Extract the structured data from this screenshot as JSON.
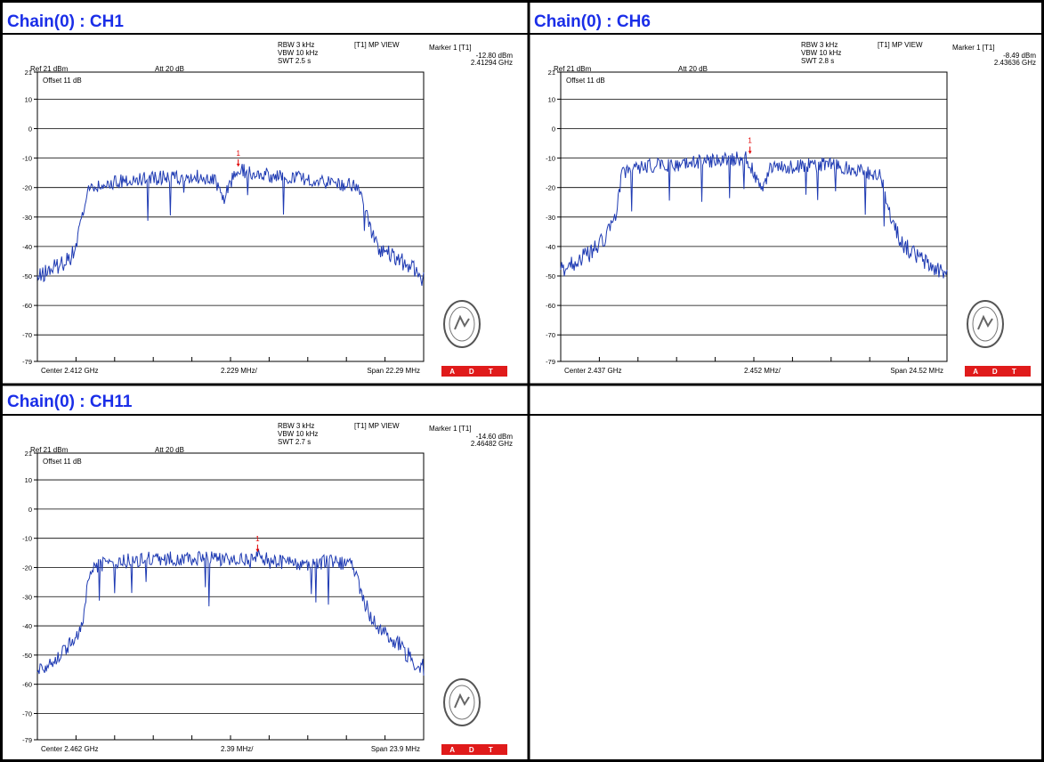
{
  "titles": [
    "Chain(0) : CH1",
    "Chain(0) : CH6",
    "Chain(0) : CH11"
  ],
  "chart_data": [
    {
      "type": "line",
      "title": "Chain(0) : CH1",
      "mode": "[T1] MP VIEW",
      "rbw": "RBW 3 kHz",
      "vbw": "VBW 10 kHz",
      "swt": "SWT 2.5 s",
      "ref": "Ref 21 dBm",
      "att": "Att 20 dB",
      "offset": "Offset 11 dB",
      "marker_label": "Marker 1 [T1]",
      "marker_level": "-12.80 dBm",
      "marker_freq": "2.41294 GHz",
      "marker_num": "1",
      "center": "Center 2.412 GHz",
      "per_div": "2.229 MHz/",
      "span": "Span 22.29 MHz",
      "ylim": [
        -79,
        21
      ],
      "ytick_labels": [
        "21",
        "10",
        "0",
        "-10",
        "-20",
        "-30",
        "-40",
        "-50",
        "-60",
        "-70",
        "-79"
      ],
      "ytick_values": [
        21,
        10,
        0,
        -10,
        -20,
        -30,
        -40,
        -50,
        -60,
        -70,
        -79
      ],
      "xlim": [
        0,
        10
      ],
      "grid": true,
      "marker_x": 5.2,
      "marker_y": -12.8,
      "series": [
        {
          "values": [
            [
              0,
              -51
            ],
            [
              0.3,
              -48
            ],
            [
              0.6,
              -46
            ],
            [
              0.9,
              -43
            ],
            [
              1.0,
              -40
            ],
            [
              1.1,
              -33
            ],
            [
              1.2,
              -27
            ],
            [
              1.3,
              -21
            ],
            [
              1.6,
              -20
            ],
            [
              2.0,
              -18
            ],
            [
              3.0,
              -17
            ],
            [
              4.0,
              -16
            ],
            [
              4.6,
              -17
            ],
            [
              4.8,
              -25
            ],
            [
              5.0,
              -18
            ],
            [
              5.2,
              -14
            ],
            [
              6.0,
              -16
            ],
            [
              7.0,
              -17
            ],
            [
              8.0,
              -19
            ],
            [
              8.3,
              -20
            ],
            [
              8.4,
              -22
            ],
            [
              8.6,
              -33
            ],
            [
              8.8,
              -40
            ],
            [
              9.0,
              -42
            ],
            [
              9.4,
              -45
            ],
            [
              9.7,
              -47
            ],
            [
              10.0,
              -51
            ]
          ]
        }
      ],
      "footer": "A D T",
      "accent": "#1f3bb3"
    },
    {
      "type": "line",
      "title": "Chain(0) : CH6",
      "mode": "[T1] MP VIEW",
      "rbw": "RBW 3 kHz",
      "vbw": "VBW 10 kHz",
      "swt": "SWT 2.8 s",
      "ref": "Ref 21 dBm",
      "att": "Att 20 dB",
      "offset": "Offset 11 dB",
      "marker_label": "Marker 1 [T1]",
      "marker_level": "-8.49 dBm",
      "marker_freq": "2.43636 GHz",
      "marker_num": "1",
      "center": "Center 2.437 GHz",
      "per_div": "2.452 MHz/",
      "span": "Span 24.52 MHz",
      "ylim": [
        -79,
        21
      ],
      "ytick_labels": [
        "21",
        "10",
        "0",
        "-10",
        "-20",
        "-30",
        "-40",
        "-50",
        "-60",
        "-70",
        "-79"
      ],
      "ytick_values": [
        21,
        10,
        0,
        -10,
        -20,
        -30,
        -40,
        -50,
        -60,
        -70,
        -79
      ],
      "xlim": [
        0,
        10
      ],
      "grid": true,
      "marker_x": 4.9,
      "marker_y": -8.49,
      "series": [
        {
          "values": [
            [
              0,
              -48
            ],
            [
              0.4,
              -45
            ],
            [
              0.8,
              -42
            ],
            [
              1.1,
              -38
            ],
            [
              1.4,
              -31
            ],
            [
              1.5,
              -22
            ],
            [
              1.6,
              -15
            ],
            [
              2.0,
              -13
            ],
            [
              3.0,
              -12
            ],
            [
              4.0,
              -11
            ],
            [
              4.8,
              -10
            ],
            [
              5.2,
              -20
            ],
            [
              5.5,
              -12
            ],
            [
              6.0,
              -13
            ],
            [
              7.0,
              -12
            ],
            [
              7.5,
              -14
            ],
            [
              8.0,
              -15
            ],
            [
              8.3,
              -16
            ],
            [
              8.5,
              -28
            ],
            [
              8.8,
              -38
            ],
            [
              9.0,
              -41
            ],
            [
              9.3,
              -44
            ],
            [
              9.6,
              -47
            ],
            [
              10.0,
              -49
            ]
          ]
        }
      ],
      "footer": "A D T",
      "accent": "#1f3bb3"
    },
    {
      "type": "line",
      "title": "Chain(0) : CH11",
      "mode": "[T1] MP VIEW",
      "rbw": "RBW 3 kHz",
      "vbw": "VBW 10 kHz",
      "swt": "SWT 2.7 s",
      "ref": "Ref 21 dBm",
      "att": "Att 20 dB",
      "offset": "Offset 11 dB",
      "marker_label": "Marker 1 [T1]",
      "marker_level": "-14.60 dBm",
      "marker_freq": "2.46482 GHz",
      "marker_num": "1",
      "center": "Center 2.462 GHz",
      "per_div": "2.39 MHz/",
      "span": "Span 23.9 MHz",
      "ylim": [
        -79,
        21
      ],
      "ytick_labels": [
        "21",
        "10",
        "0",
        "-10",
        "-20",
        "-30",
        "-40",
        "-50",
        "-60",
        "-70",
        "-79"
      ],
      "ytick_values": [
        21,
        10,
        0,
        -10,
        -20,
        -30,
        -40,
        -50,
        -60,
        -70,
        -79
      ],
      "xlim": [
        0,
        10
      ],
      "grid": true,
      "marker_x": 5.7,
      "marker_y": -14.6,
      "series": [
        {
          "values": [
            [
              0,
              -55
            ],
            [
              0.4,
              -52
            ],
            [
              0.8,
              -47
            ],
            [
              1.1,
              -42
            ],
            [
              1.2,
              -35
            ],
            [
              1.3,
              -27
            ],
            [
              1.4,
              -20
            ],
            [
              2.0,
              -18
            ],
            [
              3.0,
              -17
            ],
            [
              4.0,
              -17
            ],
            [
              5.0,
              -17
            ],
            [
              5.6,
              -18
            ],
            [
              5.7,
              -15
            ],
            [
              6.0,
              -18
            ],
            [
              7.0,
              -19
            ],
            [
              7.5,
              -18
            ],
            [
              8.0,
              -19
            ],
            [
              8.2,
              -20
            ],
            [
              8.4,
              -30
            ],
            [
              8.7,
              -38
            ],
            [
              9.0,
              -43
            ],
            [
              9.4,
              -47
            ],
            [
              9.7,
              -52
            ],
            [
              10.0,
              -54
            ]
          ]
        }
      ],
      "footer": "A D T",
      "accent": "#1f3bb3"
    }
  ],
  "colors": {
    "title": "#1a2ee8",
    "trace": "#1f3bb3",
    "marker": "#e00000",
    "grid": "#000000",
    "adt_red": "#e01b1b"
  }
}
